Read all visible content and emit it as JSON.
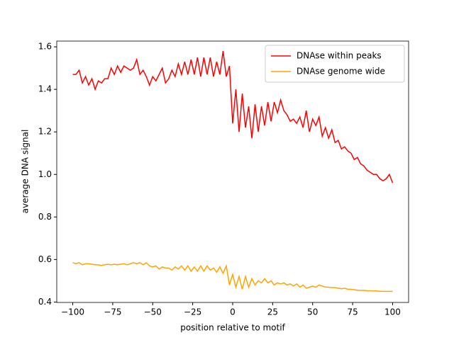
{
  "chart_data": {
    "type": "line",
    "x_label": "position relative to motif",
    "y_label": "average DNA signal",
    "x": [
      -100,
      -98,
      -96,
      -94,
      -92,
      -90,
      -88,
      -86,
      -84,
      -82,
      -80,
      -78,
      -76,
      -74,
      -72,
      -70,
      -68,
      -66,
      -64,
      -62,
      -60,
      -58,
      -56,
      -54,
      -52,
      -50,
      -48,
      -46,
      -44,
      -42,
      -40,
      -38,
      -36,
      -34,
      -32,
      -30,
      -28,
      -26,
      -24,
      -22,
      -20,
      -18,
      -16,
      -14,
      -12,
      -10,
      -8,
      -6,
      -4,
      -2,
      0,
      2,
      4,
      6,
      8,
      10,
      12,
      14,
      16,
      18,
      20,
      22,
      24,
      26,
      28,
      30,
      32,
      34,
      36,
      38,
      40,
      42,
      44,
      46,
      48,
      50,
      52,
      54,
      56,
      58,
      60,
      62,
      64,
      66,
      68,
      70,
      72,
      74,
      76,
      78,
      80,
      82,
      84,
      86,
      88,
      90,
      92,
      94,
      96,
      98,
      100
    ],
    "series": [
      {
        "name": "DNAse within peaks",
        "color": "#ff0000",
        "values": [
          1.47,
          1.47,
          1.49,
          1.43,
          1.46,
          1.42,
          1.45,
          1.4,
          1.44,
          1.43,
          1.45,
          1.45,
          1.5,
          1.47,
          1.51,
          1.48,
          1.51,
          1.5,
          1.49,
          1.5,
          1.54,
          1.47,
          1.49,
          1.46,
          1.42,
          1.46,
          1.44,
          1.47,
          1.5,
          1.43,
          1.45,
          1.49,
          1.46,
          1.52,
          1.47,
          1.53,
          1.47,
          1.54,
          1.47,
          1.55,
          1.46,
          1.55,
          1.47,
          1.55,
          1.46,
          1.53,
          1.47,
          1.58,
          1.46,
          1.51,
          1.24,
          1.4,
          1.2,
          1.38,
          1.22,
          1.32,
          1.17,
          1.33,
          1.2,
          1.32,
          1.23,
          1.34,
          1.25,
          1.34,
          1.29,
          1.35,
          1.3,
          1.28,
          1.25,
          1.26,
          1.24,
          1.27,
          1.22,
          1.3,
          1.2,
          1.26,
          1.23,
          1.27,
          1.18,
          1.22,
          1.17,
          1.21,
          1.15,
          1.16,
          1.12,
          1.13,
          1.11,
          1.1,
          1.07,
          1.08,
          1.05,
          1.04,
          1.02,
          1.01,
          1.0,
          1.0,
          0.98,
          0.97,
          0.98,
          1.0,
          0.96
        ]
      },
      {
        "name": "DNAse genome wide",
        "color": "#ffa500",
        "values": [
          0.585,
          0.58,
          0.585,
          0.575,
          0.58,
          0.58,
          0.578,
          0.575,
          0.575,
          0.572,
          0.575,
          0.578,
          0.575,
          0.578,
          0.575,
          0.578,
          0.58,
          0.575,
          0.58,
          0.585,
          0.58,
          0.585,
          0.575,
          0.585,
          0.57,
          0.565,
          0.57,
          0.555,
          0.565,
          0.56,
          0.56,
          0.55,
          0.565,
          0.555,
          0.57,
          0.55,
          0.57,
          0.545,
          0.565,
          0.545,
          0.57,
          0.545,
          0.57,
          0.55,
          0.56,
          0.54,
          0.565,
          0.535,
          0.57,
          0.48,
          0.53,
          0.47,
          0.52,
          0.46,
          0.52,
          0.47,
          0.51,
          0.48,
          0.5,
          0.49,
          0.51,
          0.49,
          0.5,
          0.48,
          0.49,
          0.485,
          0.49,
          0.48,
          0.485,
          0.475,
          0.485,
          0.47,
          0.48,
          0.465,
          0.47,
          0.475,
          0.47,
          0.48,
          0.475,
          0.47,
          0.47,
          0.468,
          0.468,
          0.465,
          0.462,
          0.465,
          0.46,
          0.46,
          0.458,
          0.455,
          0.455,
          0.455,
          0.453,
          0.453,
          0.452,
          0.452,
          0.451,
          0.45,
          0.45,
          0.45,
          0.45
        ]
      }
    ],
    "xlim": [
      -110,
      110
    ],
    "ylim": [
      0.398,
      1.627
    ],
    "xticks": [
      {
        "value": -100,
        "label": "−100"
      },
      {
        "value": -75,
        "label": "−75"
      },
      {
        "value": -50,
        "label": "−50"
      },
      {
        "value": -25,
        "label": "−25"
      },
      0,
      25,
      50,
      75,
      100
    ],
    "yticks": [
      0.4,
      0.6,
      0.8,
      {
        "value": 1,
        "label": "1.0"
      },
      1.2,
      1.4,
      1.6
    ],
    "legend": "upper right",
    "grid": false
  }
}
